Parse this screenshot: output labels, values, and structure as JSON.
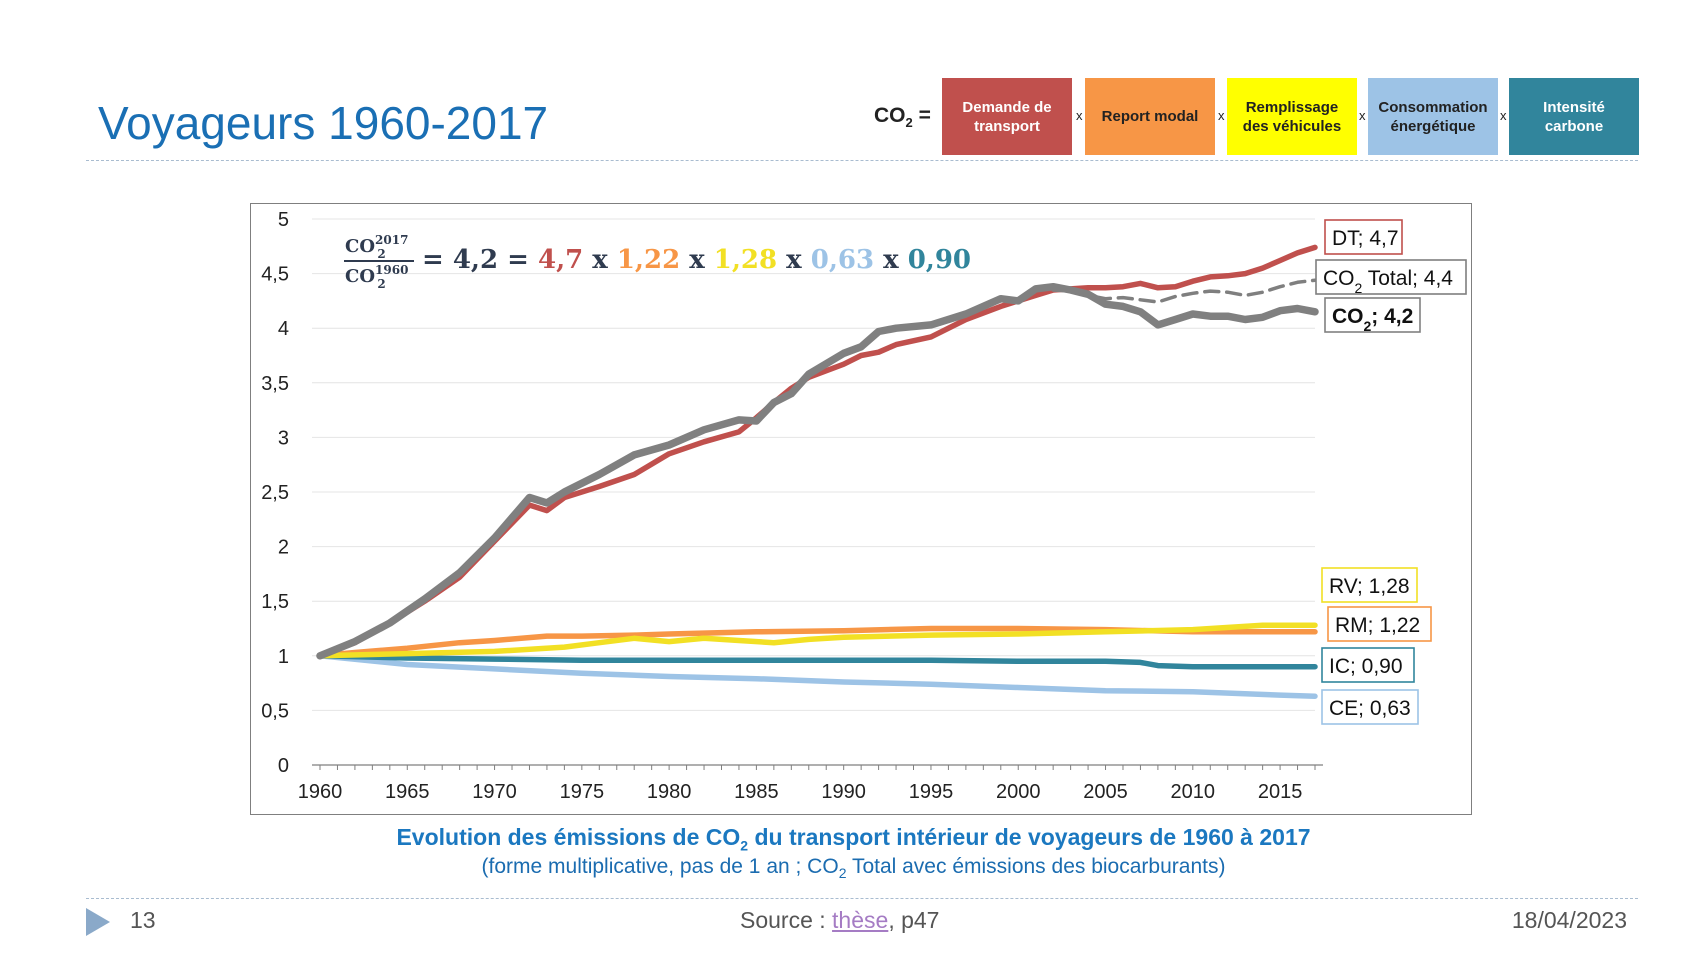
{
  "slide": {
    "title": "Voyageurs 1960-2017",
    "page_number": "13",
    "source_prefix": "Source : ",
    "source_link": "thèse",
    "source_suffix": ", p47",
    "date": "18/04/2023"
  },
  "formula": {
    "lhs_main": "CO",
    "lhs_sub": "2",
    "equals": " =",
    "times_symbol": "x",
    "factors": [
      {
        "label": "Demande de transport",
        "color": "#c0504d",
        "text_color": "#ffffff"
      },
      {
        "label": "Report modal",
        "color": "#f79646",
        "text_color": "#222222"
      },
      {
        "label": "Remplissage des véhicules",
        "color": "#ffff00",
        "text_color": "#222222"
      },
      {
        "label": "Consommation énergétique",
        "color": "#9dc3e6",
        "text_color": "#222222"
      },
      {
        "label": "Intensité carbone",
        "color": "#31859c",
        "text_color": "#ffffff"
      }
    ]
  },
  "caption": {
    "line1_a": "Evolution des émissions de CO",
    "line1_sub": "2",
    "line1_b": " du transport intérieur de voyageurs de 1960 à 2017",
    "line2_a": "(forme multiplicative, pas de 1 an ; CO",
    "line2_sub": "2",
    "line2_b": " Total avec émissions des biocarburants)"
  },
  "chart_data": {
    "type": "line",
    "ylim": [
      0,
      5
    ],
    "xlim": [
      1960,
      2017
    ],
    "yticks": [
      "0",
      "0,5",
      "1",
      "1,5",
      "2",
      "2,5",
      "3",
      "3,5",
      "4",
      "4,5",
      "5"
    ],
    "xticks": [
      "1960",
      "1965",
      "1970",
      "1975",
      "1980",
      "1985",
      "1990",
      "1995",
      "2000",
      "2005",
      "2010",
      "2015"
    ],
    "grid": true,
    "equation": {
      "num_main": "CO",
      "num_sub": "2",
      "num_sup": "2017",
      "den_main": "CO",
      "den_sub": "2",
      "den_sup": "1960",
      "parts": [
        {
          "text": "= 4,2 =",
          "color": "#2f3b4f"
        },
        {
          "text": "4,7",
          "color": "#c0504d"
        },
        {
          "text": "x",
          "color": "#2f3b4f"
        },
        {
          "text": "1,22",
          "color": "#f79646"
        },
        {
          "text": "x",
          "color": "#2f3b4f"
        },
        {
          "text": "1,28",
          "color": "#f2e024"
        },
        {
          "text": "x",
          "color": "#2f3b4f"
        },
        {
          "text": "0,63",
          "color": "#9dc3e6"
        },
        {
          "text": "x",
          "color": "#2f3b4f"
        },
        {
          "text": "0,90",
          "color": "#31859c"
        }
      ]
    },
    "series": [
      {
        "name": "DT",
        "label_main": "DT; 4,7",
        "label_sub": "",
        "label_after": "",
        "color": "#c0504d",
        "dash": false,
        "bold": false,
        "x": [
          1960,
          1962,
          1964,
          1966,
          1968,
          1970,
          1972,
          1973,
          1974,
          1976,
          1978,
          1980,
          1982,
          1984,
          1985,
          1986,
          1987,
          1988,
          1990,
          1991,
          1992,
          1993,
          1995,
          1997,
          1999,
          2000,
          2001,
          2002,
          2003,
          2004,
          2005,
          2006,
          2007,
          2008,
          2009,
          2010,
          2011,
          2012,
          2013,
          2014,
          2015,
          2016,
          2017
        ],
        "y": [
          1.0,
          1.12,
          1.3,
          1.5,
          1.72,
          2.05,
          2.38,
          2.33,
          2.45,
          2.55,
          2.66,
          2.85,
          2.96,
          3.05,
          3.18,
          3.32,
          3.45,
          3.55,
          3.67,
          3.75,
          3.78,
          3.85,
          3.92,
          4.08,
          4.2,
          4.25,
          4.3,
          4.35,
          4.36,
          4.37,
          4.37,
          4.38,
          4.41,
          4.37,
          4.38,
          4.43,
          4.47,
          4.48,
          4.5,
          4.55,
          4.62,
          4.69,
          4.74
        ]
      },
      {
        "name": "CO2 Total",
        "label_main": "CO",
        "label_sub": "2",
        "label_after": " Total; 4,4",
        "color": "#7f7f7f",
        "dash": true,
        "bold": false,
        "x": [
          2002,
          2003,
          2004,
          2005,
          2006,
          2007,
          2008,
          2009,
          2010,
          2011,
          2012,
          2013,
          2014,
          2015,
          2016,
          2017
        ],
        "y": [
          4.35,
          4.34,
          4.3,
          4.27,
          4.28,
          4.26,
          4.24,
          4.29,
          4.32,
          4.34,
          4.33,
          4.3,
          4.33,
          4.38,
          4.42,
          4.44
        ]
      },
      {
        "name": "CO2",
        "label_main": "CO",
        "label_sub": "2",
        "label_after": "; 4,2",
        "color": "#808080",
        "dash": false,
        "bold": true,
        "x": [
          1960,
          1962,
          1964,
          1966,
          1968,
          1970,
          1972,
          1973,
          1974,
          1976,
          1978,
          1980,
          1982,
          1984,
          1985,
          1986,
          1987,
          1988,
          1990,
          1991,
          1992,
          1993,
          1995,
          1997,
          1999,
          2000,
          2001,
          2002,
          2003,
          2004,
          2005,
          2006,
          2007,
          2008,
          2009,
          2010,
          2011,
          2012,
          2013,
          2014,
          2015,
          2016,
          2017
        ],
        "y": [
          1.0,
          1.13,
          1.3,
          1.52,
          1.76,
          2.08,
          2.45,
          2.4,
          2.5,
          2.66,
          2.84,
          2.93,
          3.07,
          3.16,
          3.15,
          3.32,
          3.4,
          3.58,
          3.77,
          3.83,
          3.97,
          4.0,
          4.03,
          4.13,
          4.27,
          4.25,
          4.36,
          4.38,
          4.35,
          4.31,
          4.22,
          4.2,
          4.15,
          4.03,
          4.08,
          4.13,
          4.11,
          4.11,
          4.08,
          4.1,
          4.16,
          4.18,
          4.15
        ]
      },
      {
        "name": "RV",
        "label_main": "RV; 1,28",
        "label_sub": "",
        "label_after": "",
        "color": "#f2e024",
        "dash": false,
        "bold": false,
        "x": [
          1960,
          1965,
          1970,
          1974,
          1976,
          1978,
          1980,
          1982,
          1984,
          1986,
          1988,
          1990,
          1995,
          2000,
          2005,
          2010,
          2014,
          2017
        ],
        "y": [
          1.0,
          1.02,
          1.04,
          1.08,
          1.12,
          1.16,
          1.13,
          1.16,
          1.14,
          1.12,
          1.15,
          1.17,
          1.19,
          1.2,
          1.22,
          1.24,
          1.28,
          1.28
        ]
      },
      {
        "name": "RM",
        "label_main": "RM; 1,22",
        "label_sub": "",
        "label_after": "",
        "color": "#f79646",
        "dash": false,
        "bold": false,
        "x": [
          1960,
          1962,
          1965,
          1968,
          1970,
          1973,
          1975,
          1978,
          1980,
          1985,
          1990,
          1995,
          2000,
          2005,
          2010,
          2015,
          2017
        ],
        "y": [
          1.0,
          1.03,
          1.07,
          1.12,
          1.14,
          1.18,
          1.18,
          1.19,
          1.2,
          1.22,
          1.23,
          1.25,
          1.25,
          1.24,
          1.22,
          1.22,
          1.22
        ]
      },
      {
        "name": "IC",
        "label_main": "IC; 0,90",
        "label_sub": "",
        "label_after": "",
        "color": "#31859c",
        "dash": false,
        "bold": false,
        "x": [
          1960,
          1965,
          1970,
          1975,
          1980,
          1985,
          1990,
          1995,
          2000,
          2005,
          2007,
          2008,
          2010,
          2015,
          2017
        ],
        "y": [
          1.0,
          0.98,
          0.97,
          0.96,
          0.96,
          0.96,
          0.96,
          0.96,
          0.95,
          0.95,
          0.94,
          0.91,
          0.9,
          0.9,
          0.9
        ]
      },
      {
        "name": "CE",
        "label_main": "CE; 0,63",
        "label_sub": "",
        "label_after": "",
        "color": "#9dc3e6",
        "dash": false,
        "bold": false,
        "x": [
          1960,
          1965,
          1970,
          1975,
          1980,
          1985,
          1990,
          1995,
          2000,
          2005,
          2010,
          2015,
          2017
        ],
        "y": [
          1.0,
          0.92,
          0.88,
          0.84,
          0.81,
          0.79,
          0.76,
          0.74,
          0.71,
          0.68,
          0.67,
          0.64,
          0.63
        ]
      }
    ]
  }
}
